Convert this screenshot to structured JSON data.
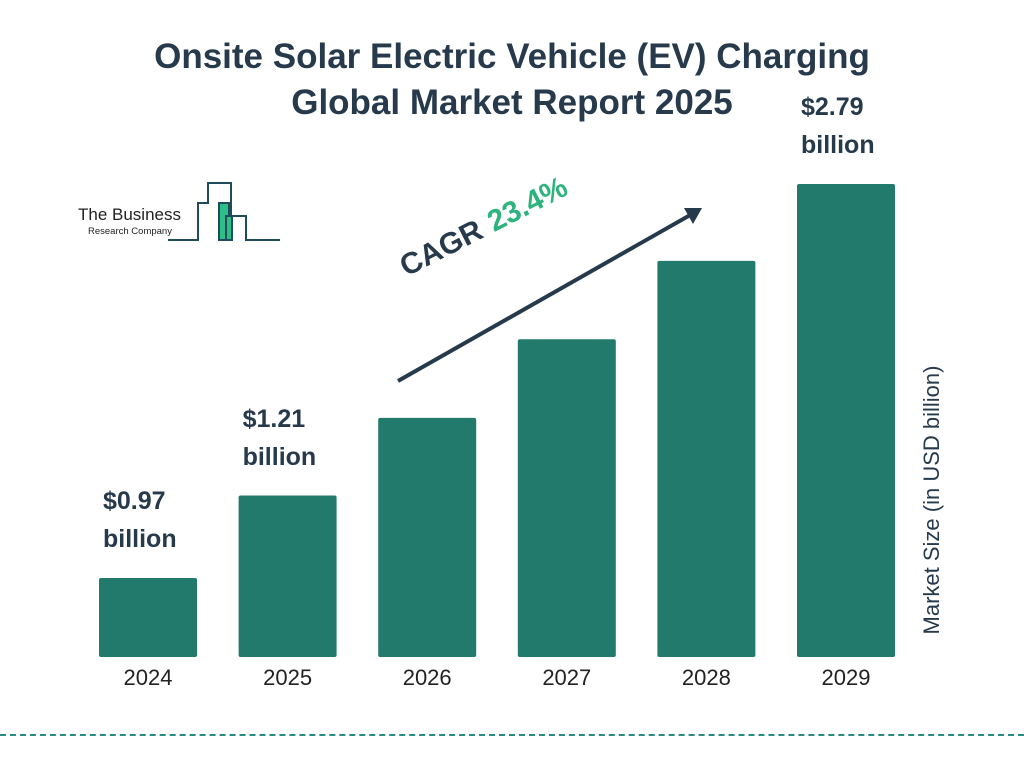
{
  "title_line1": "Onsite Solar Electric Vehicle (EV) Charging",
  "title_line2": "Global Market Report 2025",
  "logo": {
    "line1": "The Business",
    "line2": "Research Company"
  },
  "colors": {
    "bar": "#217a6b",
    "text": "#263a4c",
    "accent": "#2db37e",
    "logo_green": "#2dbf88",
    "logo_outline": "#1f4b5a"
  },
  "chart_data": {
    "type": "bar",
    "categories": [
      "2024",
      "2025",
      "2026",
      "2027",
      "2028",
      "2029"
    ],
    "values": [
      0.97,
      1.21,
      1.49,
      1.84,
      2.27,
      2.79
    ],
    "data_labels": [
      [
        "$0.97",
        "billion"
      ],
      [
        "$1.21",
        "billion"
      ],
      null,
      null,
      null,
      [
        "$2.79",
        "billion"
      ]
    ],
    "ylabel": "Market Size (in USD billion)",
    "xlabel": "",
    "cagr_label": "CAGR",
    "cagr_value": "23.4%",
    "grid": false,
    "legend": "none"
  }
}
